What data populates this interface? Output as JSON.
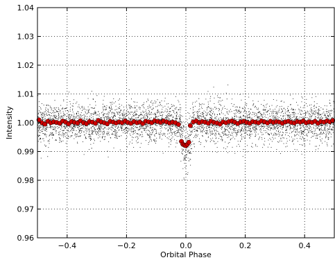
{
  "chart_data": {
    "type": "scatter",
    "title": "",
    "xlabel": "Orbital Phase",
    "ylabel": "Intensity",
    "xlim": [
      -0.5,
      0.5
    ],
    "ylim": [
      0.96,
      1.04
    ],
    "x_ticks": [
      -0.4,
      -0.2,
      0.0,
      0.2,
      0.4
    ],
    "x_tick_labels": [
      "−0.4",
      "−0.2",
      "0.0",
      "0.2",
      "0.4"
    ],
    "y_ticks": [
      0.96,
      0.97,
      0.98,
      0.99,
      1.0,
      1.01,
      1.02,
      1.03,
      1.04
    ],
    "y_tick_labels": [
      "0.96",
      "0.97",
      "0.98",
      "0.99",
      "1.00",
      "1.01",
      "1.02",
      "1.03",
      "1.04"
    ],
    "grid": true,
    "legend": "none",
    "colors": {
      "raw": "#000000",
      "binned": "#cc0000"
    },
    "series": [
      {
        "style": "raw-points",
        "description_of_distribution": "dense cloud of individual measurements centred on 1.000 with scatter about ±0.006, dipping to ~0.985 near phase 0.0",
        "baseline": 1.0,
        "scatter_sigma": 0.0035,
        "transit_center": 0.0,
        "transit_half_width": 0.018,
        "transit_depth": 0.008
      },
      {
        "style": "binned-points",
        "x": [
          -0.495,
          -0.485,
          -0.475,
          -0.465,
          -0.455,
          -0.445,
          -0.435,
          -0.425,
          -0.415,
          -0.405,
          -0.395,
          -0.385,
          -0.375,
          -0.365,
          -0.355,
          -0.345,
          -0.335,
          -0.325,
          -0.315,
          -0.305,
          -0.295,
          -0.285,
          -0.275,
          -0.265,
          -0.255,
          -0.245,
          -0.235,
          -0.225,
          -0.215,
          -0.205,
          -0.195,
          -0.185,
          -0.175,
          -0.165,
          -0.155,
          -0.145,
          -0.135,
          -0.125,
          -0.115,
          -0.105,
          -0.095,
          -0.085,
          -0.075,
          -0.065,
          -0.055,
          -0.045,
          -0.035,
          -0.025,
          -0.015,
          -0.01,
          -0.005,
          0.0,
          0.005,
          0.01,
          0.015,
          0.025,
          0.035,
          0.045,
          0.055,
          0.065,
          0.075,
          0.085,
          0.095,
          0.105,
          0.115,
          0.125,
          0.135,
          0.145,
          0.155,
          0.165,
          0.175,
          0.185,
          0.195,
          0.205,
          0.215,
          0.225,
          0.235,
          0.245,
          0.255,
          0.265,
          0.275,
          0.285,
          0.295,
          0.305,
          0.315,
          0.325,
          0.335,
          0.345,
          0.355,
          0.365,
          0.375,
          0.385,
          0.395,
          0.405,
          0.415,
          0.425,
          0.435,
          0.445,
          0.455,
          0.465,
          0.475,
          0.485,
          0.495
        ],
        "y": [
          1.001,
          1.0,
          0.9995,
          1.0005,
          1.0,
          1.0003,
          1.0001,
          0.9998,
          1.0006,
          1.0002,
          0.9996,
          1.0004,
          1.0001,
          0.9999,
          1.0007,
          1.0,
          0.9997,
          1.0004,
          1.0002,
          0.9998,
          1.0008,
          1.0003,
          1.0,
          0.9996,
          1.0005,
          1.0002,
          0.9999,
          1.0003,
          1.0,
          1.0006,
          1.0001,
          0.9998,
          1.0004,
          1.0,
          1.0002,
          0.9997,
          1.0005,
          1.0003,
          1.0,
          1.0007,
          1.0004,
          1.0001,
          1.0006,
          1.0003,
          0.9999,
          1.0002,
          1.0,
          0.9994,
          0.9935,
          0.9925,
          0.9922,
          0.992,
          0.9925,
          0.9932,
          0.999,
          1.0003,
          1.0006,
          1.0,
          1.0004,
          1.0002,
          0.9998,
          1.0005,
          1.0001,
          0.9999,
          0.9995,
          1.0003,
          1.0,
          1.0004,
          1.0006,
          1.0002,
          0.9997,
          1.0003,
          1.0005,
          1.0001,
          0.9998,
          1.0004,
          1.0002,
          1.0,
          1.0006,
          1.0003,
          0.9999,
          1.0005,
          1.0001,
          1.0004,
          1.0002,
          0.9998,
          1.0003,
          1.0005,
          1.0001,
          0.9999,
          1.0004,
          1.0002,
          1.0006,
          1.0,
          1.0003,
          1.0001,
          1.0005,
          0.9998,
          1.0004,
          1.0002,
          1.0006,
          1.0003,
          1.0008
        ]
      }
    ]
  }
}
